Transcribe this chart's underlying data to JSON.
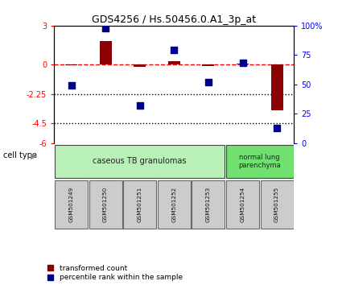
{
  "title": "GDS4256 / Hs.50456.0.A1_3p_at",
  "samples": [
    "GSM501249",
    "GSM501250",
    "GSM501251",
    "GSM501252",
    "GSM501253",
    "GSM501254",
    "GSM501255"
  ],
  "transformed_count": [
    -0.05,
    1.8,
    -0.15,
    0.3,
    -0.08,
    0.07,
    -3.5
  ],
  "percentile_rank": [
    49,
    98,
    32,
    79,
    52,
    68,
    13
  ],
  "ylim_left": [
    -6,
    3
  ],
  "ylim_right": [
    0,
    100
  ],
  "yticks_left": [
    3,
    0,
    -2.25,
    -4.5,
    -6
  ],
  "ytick_labels_left": [
    "3",
    "0",
    "-2.25",
    "-4.5",
    "-6"
  ],
  "yticks_right": [
    100,
    75,
    50,
    25,
    0
  ],
  "ytick_labels_right": [
    "100%",
    "75",
    "50",
    "25",
    "0"
  ],
  "hlines": [
    -2.25,
    -4.5
  ],
  "dashed_hline": 0,
  "bar_color": "#8B0000",
  "dot_color": "#00008B",
  "group1_label": "caseous TB granulomas",
  "group1_samples": [
    0,
    1,
    2,
    3,
    4
  ],
  "group2_label": "normal lung\nparenchyma",
  "group2_samples": [
    5,
    6
  ],
  "cell_type_label": "cell type",
  "legend_bar": "transformed count",
  "legend_dot": "percentile rank within the sample",
  "group1_color": "#b8f0b8",
  "group2_color": "#70e070",
  "sample_box_color": "#cccccc",
  "dot_size": 35,
  "bar_width": 0.35
}
